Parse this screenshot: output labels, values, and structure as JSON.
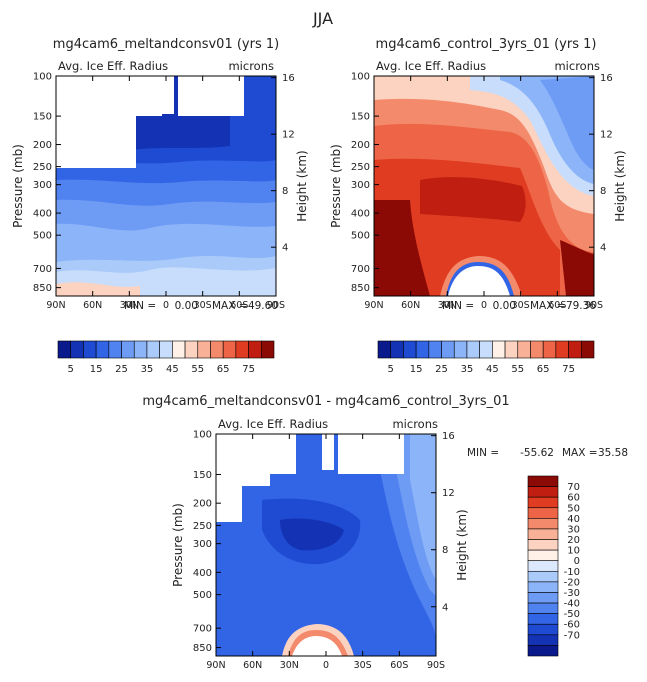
{
  "figure_title": "JJA",
  "chart_data": [
    {
      "type": "heatmap",
      "title": "mg4cam6_meltandconsv01 (yrs 1)",
      "subtitle_left": "Avg. Ice Eff. Radius",
      "subtitle_right": "microns",
      "ylabel": "Pressure (mb)",
      "y2label": "Height (km)",
      "x_ticks": [
        "90N",
        "60N",
        "30N",
        "0",
        "30S",
        "60S",
        "90S"
      ],
      "y_ticks": [
        "100",
        "150",
        "200",
        "250",
        "300",
        "400",
        "500",
        "700",
        "850"
      ],
      "y2_ticks": [
        "16",
        "12",
        "8",
        "4"
      ],
      "min_label": "MIN =",
      "min_value": "0.00",
      "max_label": "MAX =",
      "max_value": "49.60",
      "colorbar_ticks": [
        "5",
        "15",
        "25",
        "35",
        "45",
        "55",
        "65",
        "75"
      ],
      "palette": [
        "#0a1a8c",
        "#1432b4",
        "#1e4bd2",
        "#3264e6",
        "#5082f0",
        "#6e9cf5",
        "#8cb4f8",
        "#aacafa",
        "#c8ddfb",
        "#fff0e8",
        "#fcd2c0",
        "#f8b096",
        "#f48a6c",
        "#ee6446",
        "#e03c22",
        "#c01e10",
        "#8c0a06"
      ]
    },
    {
      "type": "heatmap",
      "title": "mg4cam6_control_3yrs_01 (yrs 1)",
      "subtitle_left": "Avg. Ice Eff. Radius",
      "subtitle_right": "microns",
      "ylabel": "Pressure (mb)",
      "y2label": "Height (km)",
      "x_ticks": [
        "90N",
        "60N",
        "30N",
        "0",
        "30S",
        "60S",
        "90S"
      ],
      "y_ticks": [
        "100",
        "150",
        "200",
        "250",
        "300",
        "400",
        "500",
        "700",
        "850"
      ],
      "y2_ticks": [
        "16",
        "12",
        "8",
        "4"
      ],
      "min_label": "MIN =",
      "min_value": "0.00",
      "max_label": "MAX =",
      "max_value": "79.36",
      "colorbar_ticks": [
        "5",
        "15",
        "25",
        "35",
        "45",
        "55",
        "65",
        "75"
      ]
    },
    {
      "type": "heatmap",
      "title": "mg4cam6_meltandconsv01 - mg4cam6_control_3yrs_01",
      "subtitle_left": "Avg. Ice Eff. Radius",
      "subtitle_right": "microns",
      "ylabel": "Pressure (mb)",
      "y2label": "Height (km)",
      "x_ticks": [
        "90N",
        "60N",
        "30N",
        "0",
        "30S",
        "60S",
        "90S"
      ],
      "y_ticks": [
        "100",
        "150",
        "200",
        "250",
        "300",
        "400",
        "500",
        "700",
        "850"
      ],
      "y2_ticks": [
        "16",
        "12",
        "8",
        "4"
      ],
      "min_label": "MIN =",
      "min_value": "-55.62",
      "max_label": "MAX =",
      "max_value": "35.58",
      "colorbar_ticks": [
        "70",
        "60",
        "50",
        "40",
        "30",
        "20",
        "10",
        "0",
        "-10",
        "-20",
        "-30",
        "-40",
        "-50",
        "-60",
        "-70"
      ],
      "palette": [
        "#8c0a06",
        "#c01e10",
        "#e03c22",
        "#ee6446",
        "#f48a6c",
        "#f8b096",
        "#fcd2c0",
        "#fff0e8",
        "#dce8fc",
        "#aacafa",
        "#8cb4f8",
        "#6e9cf5",
        "#5082f0",
        "#3264e6",
        "#1e4bd2",
        "#1432b4",
        "#0a1a8c"
      ]
    }
  ]
}
